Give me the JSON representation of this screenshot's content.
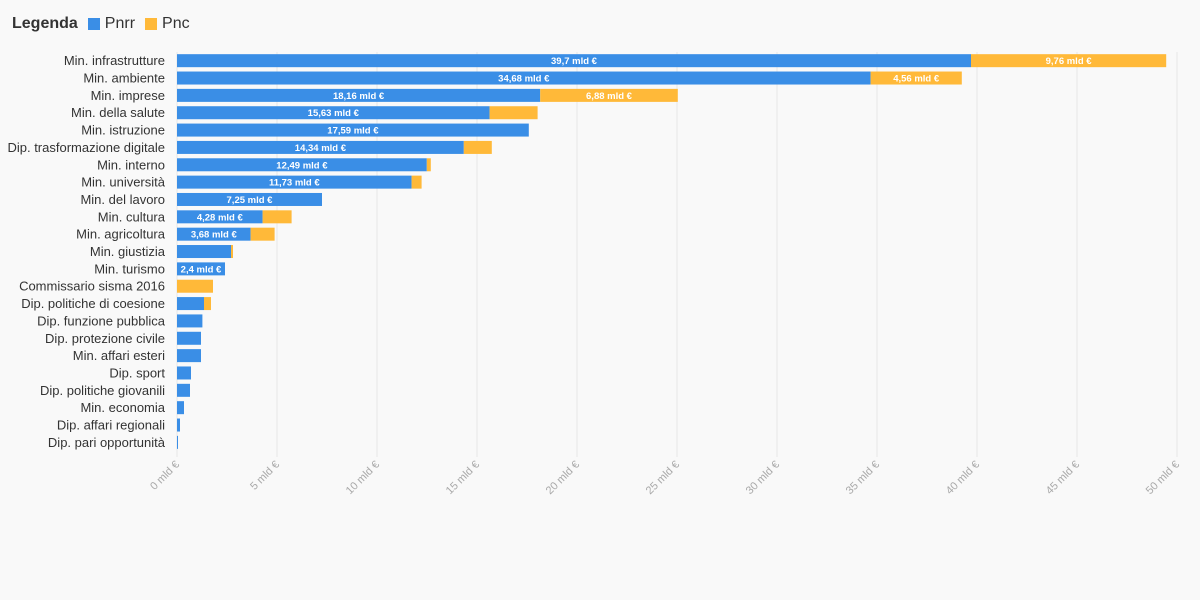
{
  "chart_data": {
    "type": "bar",
    "orientation": "horizontal",
    "stacked": true,
    "legend": {
      "title": "Legenda",
      "placement": "top-left"
    },
    "categories": [
      "Min. infrastrutture",
      "Min. ambiente",
      "Min. imprese",
      "Min. della salute",
      "Min. istruzione",
      "Dip. trasformazione digitale",
      "Min. interno",
      "Min. università",
      "Min. del lavoro",
      "Min. cultura",
      "Min. agricoltura",
      "Min. giustizia",
      "Min. turismo",
      "Commissario sisma 2016",
      "Dip. politiche di coesione",
      "Dip. funzione pubblica",
      "Dip. protezione civile",
      "Min. affari esteri",
      "Dip. sport",
      "Dip. politiche giovanili",
      "Min. economia",
      "Dip. affari regionali",
      "Dip. pari opportunità"
    ],
    "series": [
      {
        "name": "Pnrr",
        "color": "#3a8ee6",
        "values": [
          39.7,
          34.68,
          18.16,
          15.63,
          17.59,
          14.34,
          12.49,
          11.73,
          7.25,
          4.28,
          3.68,
          2.7,
          2.4,
          0.0,
          1.35,
          1.27,
          1.2,
          1.2,
          0.7,
          0.65,
          0.35,
          0.15,
          0.05
        ],
        "labels": [
          "39,7 mld €",
          "34,68 mld €",
          "18,16 mld €",
          "15,63 mld €",
          "17,59 mld €",
          "14,34 mld €",
          "12,49 mld €",
          "11,73 mld €",
          "7,25 mld €",
          "4,28 mld €",
          "3,68 mld €",
          "",
          "2,4 mld €",
          "",
          "",
          "",
          "",
          "",
          "",
          "",
          "",
          "",
          ""
        ]
      },
      {
        "name": "Pnc",
        "color": "#ffb939",
        "values": [
          9.76,
          4.56,
          6.88,
          2.4,
          0.0,
          1.4,
          0.2,
          0.5,
          0.0,
          1.45,
          1.2,
          0.1,
          0.0,
          1.8,
          0.35,
          0.0,
          0.0,
          0.0,
          0.0,
          0.0,
          0.0,
          0.0,
          0.0
        ],
        "labels": [
          "9,76 mld €",
          "4,56 mld €",
          "6,88 mld €",
          "",
          "",
          "",
          "",
          "",
          "",
          "",
          "",
          "",
          "",
          "",
          "",
          "",
          "",
          "",
          "",
          "",
          "",
          "",
          ""
        ]
      }
    ],
    "xlim": [
      0,
      50
    ],
    "xticks": [
      0,
      5,
      10,
      15,
      20,
      25,
      30,
      35,
      40,
      45,
      50
    ],
    "xtick_labels": [
      "0 mld €",
      "5 mld €",
      "10 mld €",
      "15 mld €",
      "20 mld €",
      "25 mld €",
      "30 mld €",
      "35 mld €",
      "40 mld €",
      "45 mld €",
      "50 mld €"
    ],
    "grid": true
  }
}
